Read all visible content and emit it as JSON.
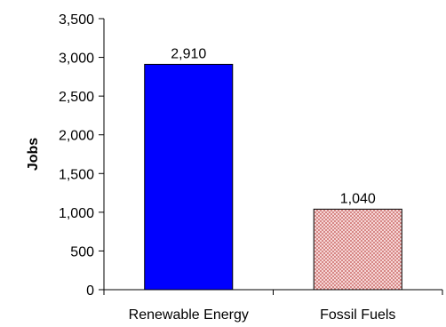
{
  "chart_data": {
    "type": "bar",
    "title": "",
    "xlabel": "",
    "ylabel": "Jobs",
    "categories": [
      "Renewable Energy",
      "Fossil Fuels"
    ],
    "values": [
      2910,
      1040
    ],
    "data_labels": [
      "2,910",
      "1,040"
    ],
    "ylim": [
      0,
      3500
    ],
    "yticks": [
      0,
      500,
      1000,
      1500,
      2000,
      2500,
      3000,
      3500
    ],
    "ytick_labels": [
      "0",
      "500",
      "1,000",
      "1,500",
      "2,000",
      "2,500",
      "3,000",
      "3,500"
    ],
    "grid": false,
    "legend": "none",
    "colors": {
      "renewable_fill": "#0000FF",
      "fossil_fill": "#F2C4C4",
      "fossil_pattern": "#C0504D",
      "axis": "#000000"
    }
  }
}
